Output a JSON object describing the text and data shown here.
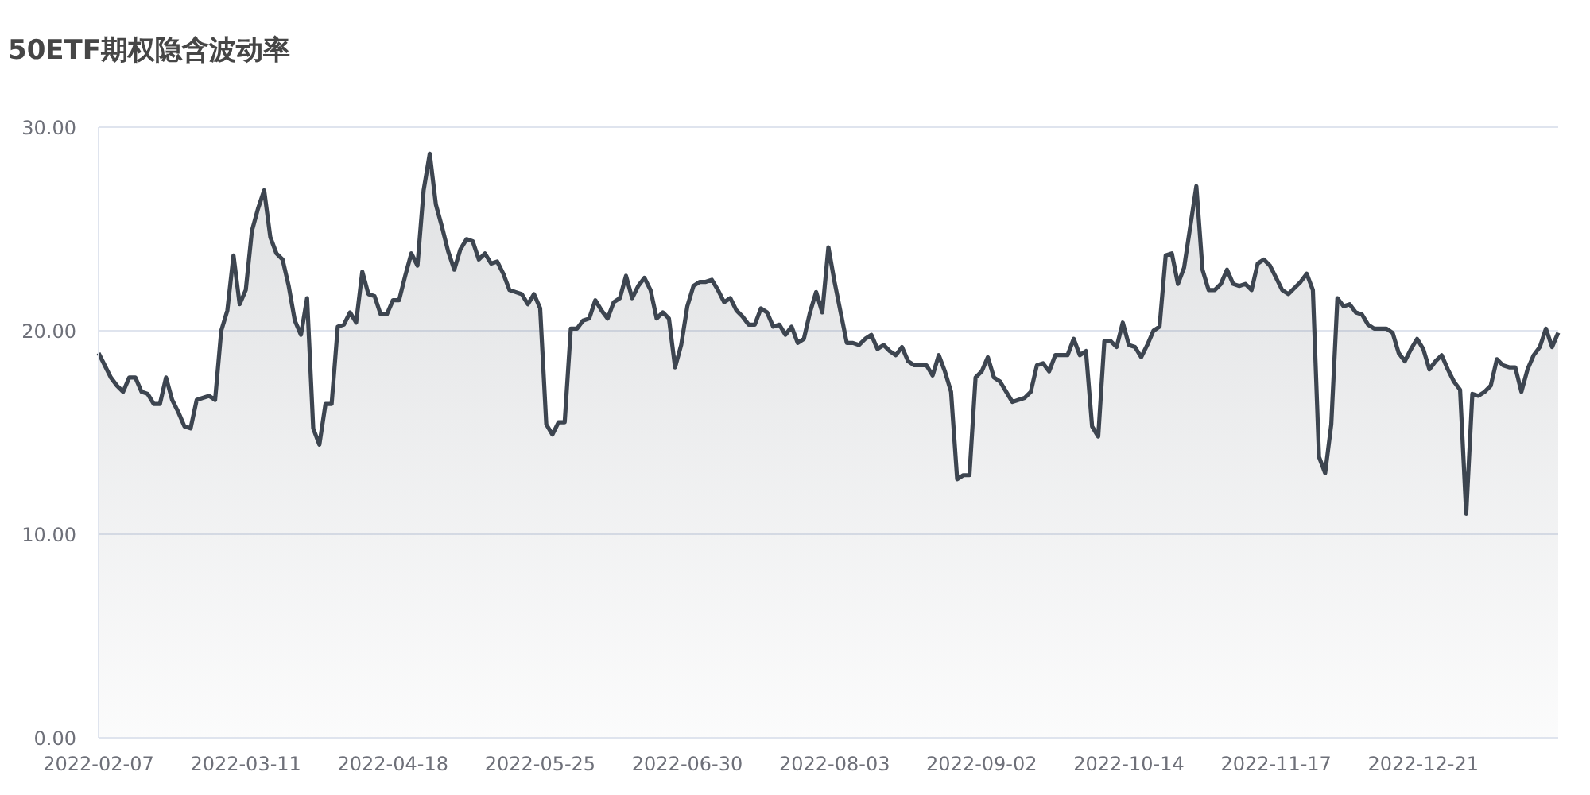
{
  "chart_data": {
    "type": "area",
    "title": "50ETF期权隐含波动率",
    "categories": [
      "2022-02-07",
      null,
      null,
      null,
      null,
      null,
      null,
      null,
      null,
      null,
      null,
      null,
      null,
      null,
      null,
      null,
      null,
      null,
      null,
      null,
      null,
      null,
      null,
      null,
      "2022-03-11",
      null,
      null,
      null,
      null,
      null,
      null,
      null,
      null,
      null,
      null,
      null,
      null,
      null,
      null,
      null,
      null,
      null,
      null,
      null,
      null,
      null,
      null,
      null,
      "2022-04-18",
      null,
      null,
      null,
      null,
      null,
      null,
      null,
      null,
      null,
      null,
      null,
      null,
      null,
      null,
      null,
      null,
      null,
      null,
      null,
      null,
      null,
      null,
      null,
      "2022-05-25",
      null,
      null,
      null,
      null,
      null,
      null,
      null,
      null,
      null,
      null,
      null,
      null,
      null,
      null,
      null,
      null,
      null,
      null,
      null,
      null,
      null,
      null,
      null,
      "2022-06-30",
      null,
      null,
      null,
      null,
      null,
      null,
      null,
      null,
      null,
      null,
      null,
      null,
      null,
      null,
      null,
      null,
      null,
      null,
      null,
      null,
      null,
      null,
      null,
      "2022-08-03",
      null,
      null,
      null,
      null,
      null,
      null,
      null,
      null,
      null,
      null,
      null,
      null,
      null,
      null,
      null,
      null,
      null,
      null,
      null,
      null,
      null,
      null,
      null,
      "2022-09-02",
      null,
      null,
      null,
      null,
      null,
      null,
      null,
      null,
      null,
      null,
      null,
      null,
      null,
      null,
      null,
      null,
      null,
      null,
      null,
      null,
      null,
      null,
      null,
      "2022-10-14",
      null,
      null,
      null,
      null,
      null,
      null,
      null,
      null,
      null,
      null,
      null,
      null,
      null,
      null,
      null,
      null,
      null,
      null,
      null,
      null,
      null,
      null,
      null,
      "2022-11-17",
      null,
      null,
      null,
      null,
      null,
      null,
      null,
      null,
      null,
      null,
      null,
      null,
      null,
      null,
      null,
      null,
      null,
      null,
      null,
      null,
      null,
      null,
      null,
      "2022-12-21",
      null,
      null,
      null,
      null,
      null,
      null,
      null,
      null,
      null,
      null,
      null,
      null,
      null,
      null,
      null,
      null,
      null,
      null,
      null,
      null,
      null,
      null
    ],
    "series": [
      {
        "color": "#3d4550",
        "values": [
          18.9,
          18.3,
          17.7,
          17.3,
          17.0,
          17.7,
          17.7,
          17.0,
          16.9,
          16.4,
          16.4,
          17.7,
          16.6,
          16.0,
          15.3,
          15.2,
          16.6,
          16.7,
          16.8,
          16.6,
          20.0,
          21.0,
          23.7,
          21.3,
          22.0,
          24.9,
          26.0,
          26.9,
          24.6,
          23.8,
          23.5,
          22.2,
          20.5,
          19.8,
          21.6,
          15.2,
          14.4,
          16.4,
          16.4,
          20.2,
          20.3,
          20.9,
          20.4,
          22.9,
          21.8,
          21.7,
          20.8,
          20.8,
          21.5,
          21.5,
          22.7,
          23.8,
          23.2,
          26.9,
          28.7,
          26.2,
          25.1,
          23.9,
          23.0,
          24.0,
          24.5,
          24.4,
          23.5,
          23.8,
          23.3,
          23.4,
          22.8,
          22.0,
          21.9,
          21.8,
          21.3,
          21.8,
          21.1,
          15.4,
          14.9,
          15.5,
          15.5,
          20.1,
          20.1,
          20.5,
          20.6,
          21.5,
          21.0,
          20.6,
          21.4,
          21.6,
          22.7,
          21.6,
          22.2,
          22.6,
          22.0,
          20.6,
          20.9,
          20.6,
          18.2,
          19.3,
          21.2,
          22.2,
          22.4,
          22.4,
          22.5,
          22.0,
          21.4,
          21.6,
          21.0,
          20.7,
          20.3,
          20.3,
          21.1,
          20.9,
          20.2,
          20.3,
          19.8,
          20.2,
          19.4,
          19.6,
          20.9,
          21.9,
          20.9,
          24.1,
          22.4,
          20.9,
          19.4,
          19.4,
          19.3,
          19.6,
          19.8,
          19.1,
          19.3,
          19.0,
          18.8,
          19.2,
          18.5,
          18.3,
          18.3,
          18.3,
          17.8,
          18.8,
          18.0,
          17.0,
          12.7,
          12.9,
          12.9,
          17.7,
          18.0,
          18.7,
          17.7,
          17.5,
          17.0,
          16.5,
          16.6,
          16.7,
          17.0,
          18.3,
          18.4,
          18.0,
          18.8,
          18.8,
          18.8,
          19.6,
          18.8,
          19.0,
          15.3,
          14.8,
          19.5,
          19.5,
          19.2,
          20.4,
          19.3,
          19.2,
          18.7,
          19.3,
          20.0,
          20.2,
          23.7,
          23.8,
          22.3,
          23.1,
          25.1,
          27.1,
          23.0,
          22.0,
          22.0,
          22.3,
          23.0,
          22.3,
          22.2,
          22.3,
          22.0,
          23.3,
          23.5,
          23.2,
          22.6,
          22.0,
          21.8,
          22.1,
          22.4,
          22.8,
          22.0,
          13.8,
          13.0,
          15.4,
          21.6,
          21.2,
          21.3,
          20.9,
          20.8,
          20.3,
          20.1,
          20.1,
          20.1,
          19.9,
          18.9,
          18.5,
          19.1,
          19.6,
          19.1,
          18.1,
          18.5,
          18.8,
          18.1,
          17.5,
          17.1,
          11.0,
          16.9,
          16.8,
          17.0,
          17.3,
          18.6,
          18.3,
          18.2,
          18.2,
          17.0,
          18.1,
          18.8,
          19.2,
          20.1,
          19.2,
          19.9
        ]
      }
    ],
    "ylim": [
      0,
      30
    ],
    "yticks": [
      {
        "value": 0,
        "label": "0.00"
      },
      {
        "value": 10,
        "label": "10.00"
      },
      {
        "value": 20,
        "label": "20.00"
      },
      {
        "value": 30,
        "label": "30.00"
      }
    ],
    "grid": "y",
    "marker": "none"
  }
}
